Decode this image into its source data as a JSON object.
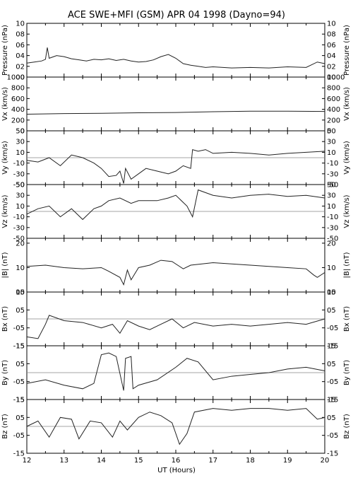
{
  "chart_data": {
    "type": "line",
    "title": "ACE SWE+MFI (GSM) APR 04 1998 (Dayno=94)",
    "xlabel": "UT (Hours)",
    "xlim": [
      12,
      20
    ],
    "x_ticks": [
      12,
      13,
      14,
      15,
      16,
      17,
      18,
      19,
      20
    ],
    "x_tick_labels": [
      "12",
      "13",
      "14",
      "15",
      "16",
      "17",
      "18",
      "19",
      "20"
    ],
    "panels": [
      {
        "id": "pressure",
        "ylabel": "Pressure (nPa)",
        "ylim": [
          0,
          10
        ],
        "ticks": [
          0,
          2,
          4,
          6,
          8,
          10
        ],
        "tick_labels": [
          "00",
          "02",
          "04",
          "06",
          "08",
          "10"
        ],
        "zero_line": false,
        "series": {
          "x": [
            12.0,
            12.2,
            12.4,
            12.5,
            12.55,
            12.6,
            12.8,
            13.0,
            13.2,
            13.4,
            13.6,
            13.8,
            14.0,
            14.2,
            14.4,
            14.6,
            14.8,
            15.0,
            15.2,
            15.4,
            15.6,
            15.8,
            16.0,
            16.2,
            16.4,
            16.6,
            16.8,
            17.0,
            17.5,
            18.0,
            18.5,
            19.0,
            19.5,
            19.8,
            20.0
          ],
          "y": [
            2.6,
            2.8,
            3.0,
            3.3,
            5.5,
            3.5,
            4.0,
            3.8,
            3.4,
            3.2,
            3.0,
            3.3,
            3.2,
            3.4,
            3.1,
            3.3,
            3.0,
            2.8,
            2.9,
            3.2,
            3.8,
            4.2,
            3.5,
            2.5,
            2.2,
            2.0,
            1.8,
            1.9,
            1.7,
            1.8,
            1.7,
            1.9,
            1.8,
            2.8,
            2.5
          ]
        }
      },
      {
        "id": "vx",
        "ylabel": "Vx (km/s)",
        "ylim": [
          0,
          1000
        ],
        "ticks": [
          0,
          200,
          400,
          600,
          800,
          1000
        ],
        "tick_labels": [
          "0",
          "200",
          "400",
          "600",
          "800",
          "1000"
        ],
        "zero_line": false,
        "series": {
          "x": [
            12.0,
            13.0,
            14.0,
            15.0,
            16.0,
            17.0,
            18.0,
            19.0,
            20.0
          ],
          "y": [
            310,
            320,
            325,
            335,
            340,
            355,
            365,
            365,
            360
          ]
        }
      },
      {
        "id": "vy",
        "ylabel": "Vy (km/s)",
        "ylim": [
          -50,
          50
        ],
        "ticks": [
          -50,
          -30,
          -10,
          10,
          30,
          50
        ],
        "tick_labels": [
          "-50",
          "-30",
          "-10",
          "10",
          "30",
          "50"
        ],
        "zero_line": true,
        "series": {
          "x": [
            12.0,
            12.3,
            12.6,
            12.9,
            13.2,
            13.5,
            13.8,
            14.0,
            14.2,
            14.4,
            14.5,
            14.6,
            14.65,
            14.8,
            15.0,
            15.2,
            15.5,
            15.8,
            16.0,
            16.2,
            16.4,
            16.45,
            16.6,
            16.8,
            17.0,
            17.5,
            18.0,
            18.5,
            19.0,
            19.5,
            20.0
          ],
          "y": [
            -5,
            -8,
            0,
            -15,
            5,
            0,
            -10,
            -20,
            -35,
            -33,
            -25,
            -48,
            -20,
            -40,
            -30,
            -20,
            -25,
            -30,
            -25,
            -15,
            -20,
            15,
            12,
            15,
            8,
            10,
            8,
            5,
            8,
            10,
            12
          ]
        }
      },
      {
        "id": "vz",
        "ylabel": "Vz (km/s)",
        "ylim": [
          -50,
          50
        ],
        "ticks": [
          -50,
          -30,
          -10,
          10,
          30,
          50
        ],
        "tick_labels": [
          "-50",
          "-30",
          "-10",
          "10",
          "30",
          "50"
        ],
        "zero_line": true,
        "series": {
          "x": [
            12.0,
            12.3,
            12.6,
            12.9,
            13.2,
            13.5,
            13.8,
            14.0,
            14.2,
            14.5,
            14.8,
            15.0,
            15.5,
            15.8,
            16.0,
            16.3,
            16.45,
            16.6,
            17.0,
            17.5,
            18.0,
            18.5,
            19.0,
            19.5,
            20.0
          ],
          "y": [
            -5,
            5,
            10,
            -10,
            5,
            -15,
            5,
            10,
            20,
            25,
            15,
            20,
            20,
            25,
            30,
            10,
            -10,
            40,
            30,
            25,
            30,
            32,
            28,
            30,
            25
          ]
        }
      },
      {
        "id": "b",
        "ylabel": "|B| (nT)",
        "ylim": [
          0,
          22
        ],
        "ticks": [
          0,
          10,
          20
        ],
        "tick_labels": [
          "00",
          "10",
          "20"
        ],
        "zero_line": false,
        "series": {
          "x": [
            12.0,
            12.5,
            13.0,
            13.5,
            14.0,
            14.2,
            14.5,
            14.6,
            14.7,
            14.8,
            15.0,
            15.3,
            15.6,
            15.9,
            16.2,
            16.4,
            16.7,
            17.0,
            17.5,
            18.0,
            18.5,
            19.0,
            19.5,
            19.7,
            19.8,
            20.0
          ],
          "y": [
            10.5,
            11.0,
            10.0,
            9.5,
            10.0,
            8.5,
            6.0,
            3.0,
            9.0,
            5.0,
            10.0,
            11.0,
            13.0,
            12.5,
            9.5,
            11.0,
            11.5,
            12.0,
            11.5,
            11.0,
            10.5,
            10.0,
            9.5,
            7.0,
            6.0,
            8.0
          ]
        }
      },
      {
        "id": "bx",
        "ylabel": "Bx (nT)",
        "ylim": [
          -15,
          15
        ],
        "ticks": [
          -15,
          -5,
          5,
          15
        ],
        "tick_labels": [
          "-15",
          "-05",
          "05",
          "15"
        ],
        "zero_line": true,
        "series": {
          "x": [
            12.0,
            12.3,
            12.5,
            12.6,
            13.0,
            13.5,
            14.0,
            14.3,
            14.5,
            14.7,
            15.0,
            15.3,
            15.6,
            15.9,
            16.2,
            16.5,
            17.0,
            17.5,
            18.0,
            18.5,
            19.0,
            19.5,
            20.0
          ],
          "y": [
            -10,
            -11,
            -3,
            2,
            -1,
            -2,
            -5,
            -3,
            -8,
            -1,
            -4,
            -6,
            -3,
            0,
            -5,
            -2,
            -4,
            -3,
            -4,
            -3,
            -2,
            -3,
            0
          ]
        }
      },
      {
        "id": "by",
        "ylabel": "By (nT)",
        "ylim": [
          -15,
          15
        ],
        "ticks": [
          -15,
          -5,
          5,
          15
        ],
        "tick_labels": [
          "-15",
          "-05",
          "05",
          "15"
        ],
        "zero_line": true,
        "series": {
          "x": [
            12.0,
            12.5,
            13.0,
            13.5,
            13.8,
            14.0,
            14.2,
            14.4,
            14.6,
            14.65,
            14.8,
            14.85,
            15.0,
            15.5,
            16.0,
            16.3,
            16.6,
            17.0,
            17.5,
            18.0,
            18.5,
            19.0,
            19.5,
            20.0
          ],
          "y": [
            -6,
            -4,
            -7,
            -9,
            -6,
            10,
            11,
            9,
            -10,
            8,
            9,
            -9,
            -7,
            -4,
            3,
            8,
            6,
            -4,
            -2,
            -1,
            0,
            2,
            3,
            1
          ]
        }
      },
      {
        "id": "bz",
        "ylabel": "Bz (nT)",
        "ylim": [
          -15,
          15
        ],
        "ticks": [
          -15,
          -5,
          5,
          15
        ],
        "tick_labels": [
          "-15",
          "-05",
          "05",
          "15"
        ],
        "zero_line": true,
        "series": {
          "x": [
            12.0,
            12.3,
            12.6,
            12.9,
            13.2,
            13.4,
            13.7,
            14.0,
            14.3,
            14.5,
            14.7,
            15.0,
            15.3,
            15.6,
            15.9,
            16.1,
            16.3,
            16.5,
            17.0,
            17.5,
            18.0,
            18.5,
            19.0,
            19.5,
            19.8,
            20.0
          ],
          "y": [
            0,
            3,
            -6,
            5,
            4,
            -7,
            3,
            2,
            -6,
            3,
            -2,
            5,
            8,
            6,
            2,
            -10,
            -4,
            8,
            10,
            9,
            10,
            10,
            9,
            10,
            4,
            5
          ]
        }
      }
    ]
  }
}
